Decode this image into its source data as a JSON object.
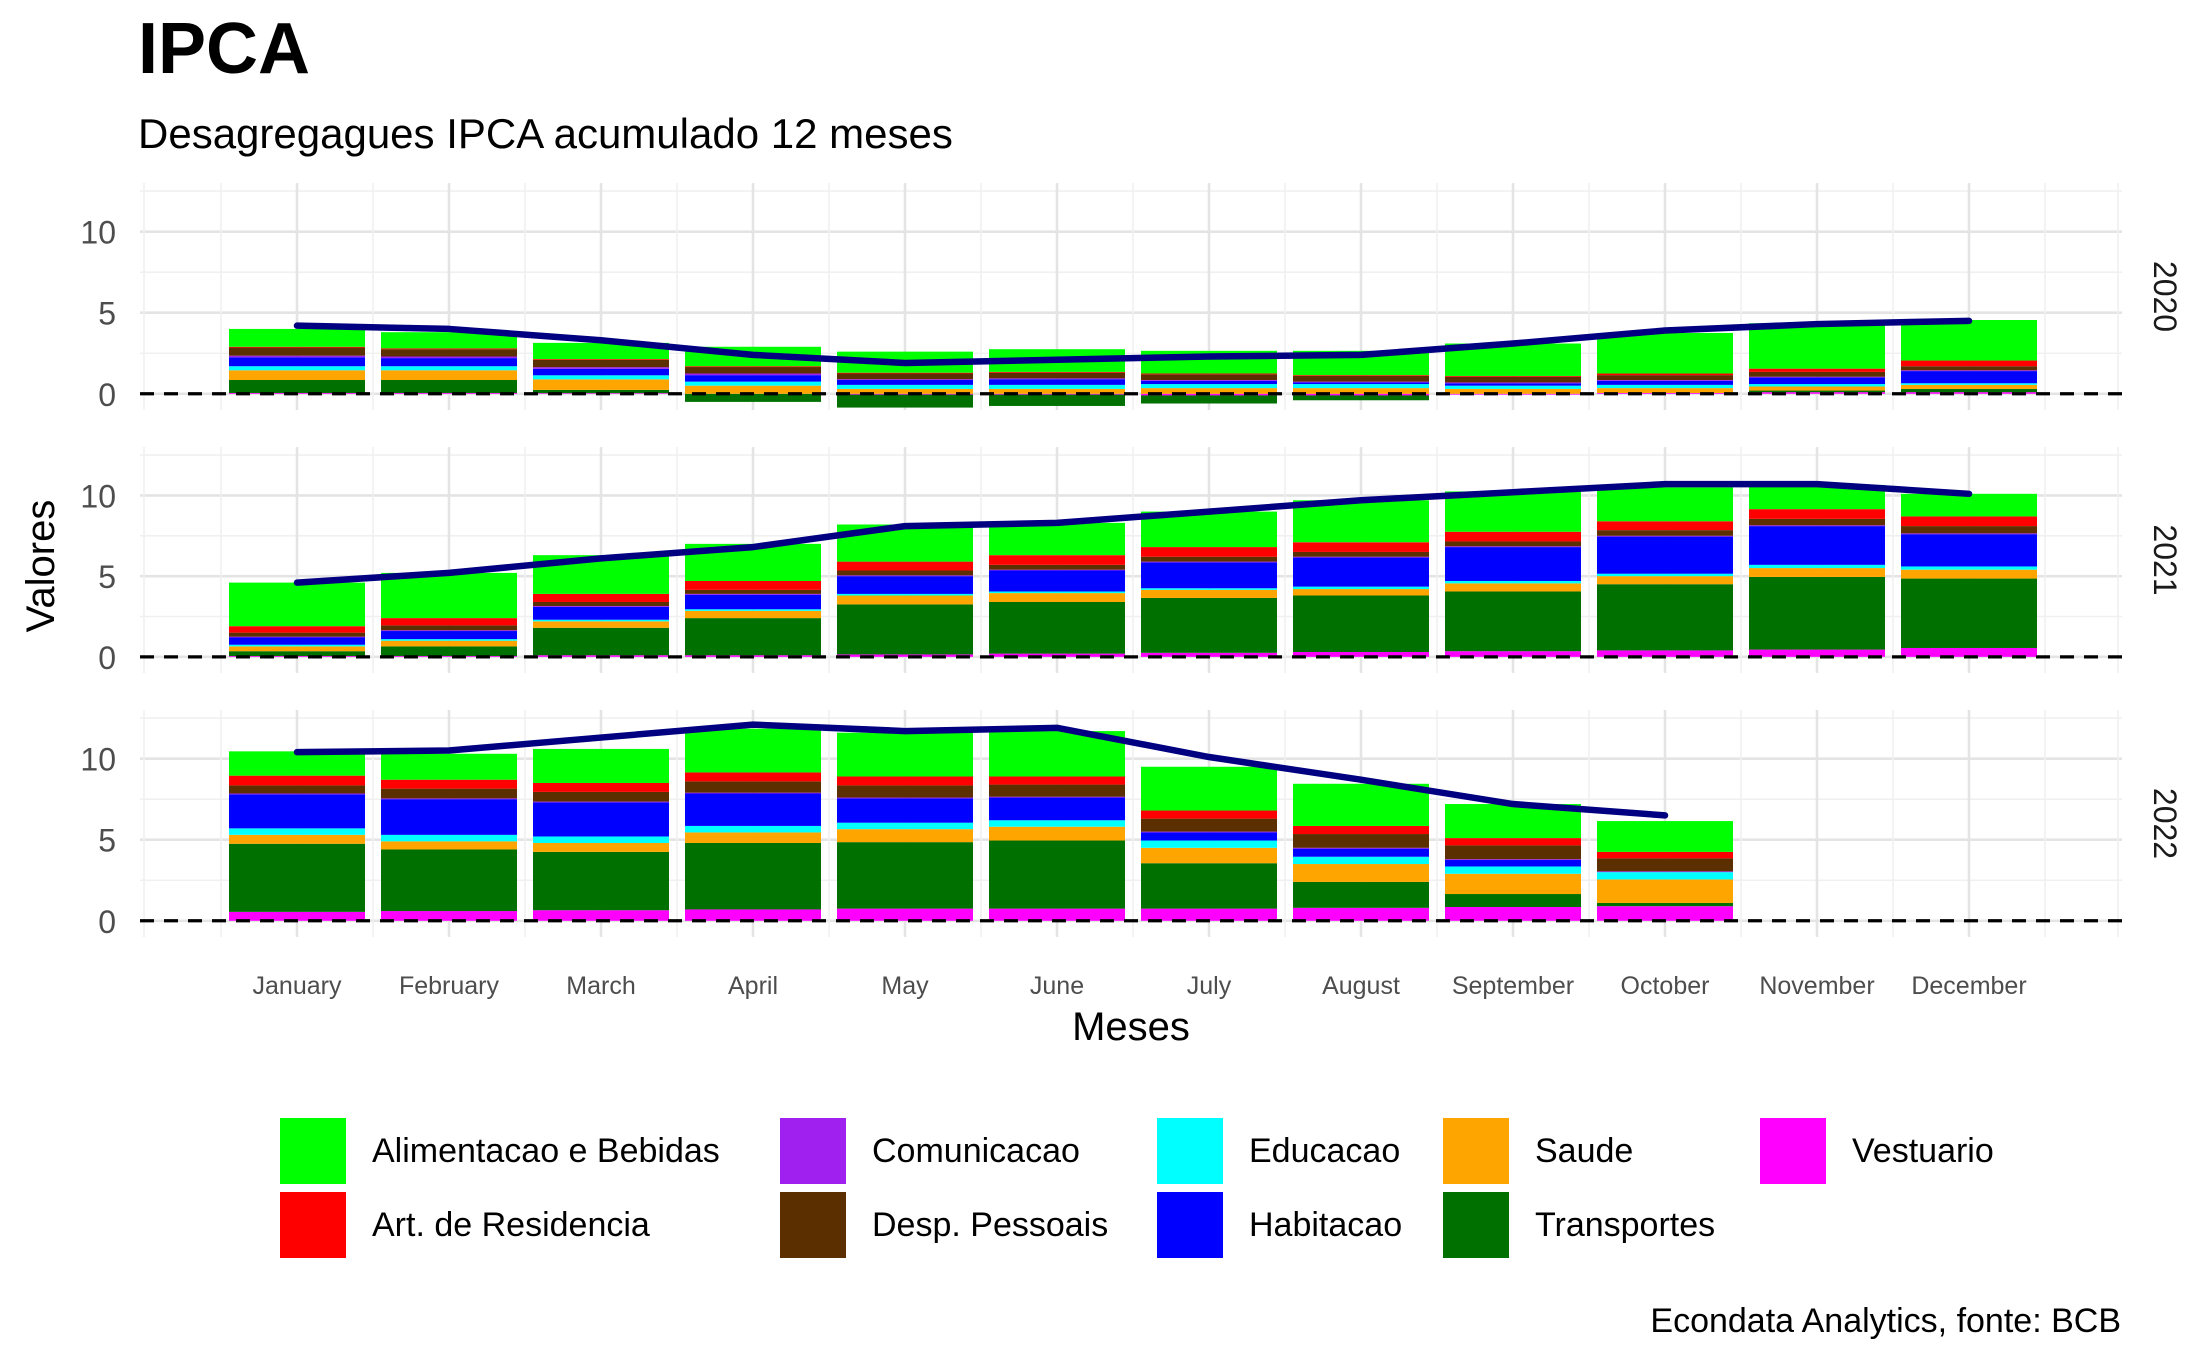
{
  "chart_data": {
    "type": "bar",
    "title": "IPCA",
    "subtitle": "Desagregagues IPCA acumulado 12 meses",
    "xlabel": "Meses",
    "ylabel": "Valores",
    "caption": "Econdata Analytics, fonte: BCB",
    "facet_labels": [
      "2020",
      "2021",
      "2022"
    ],
    "categories": [
      "January",
      "February",
      "March",
      "April",
      "May",
      "June",
      "July",
      "August",
      "September",
      "October",
      "November",
      "December"
    ],
    "ylim": [
      -1,
      13
    ],
    "yticks": [
      0,
      5,
      10
    ],
    "reference_line": 0,
    "line_color": "#000080",
    "series": [
      {
        "name": "Vestuario",
        "color": "#ff00ff",
        "values": {
          "2020": [
            0.05,
            0.05,
            0.04,
            0.0,
            -0.05,
            -0.05,
            -0.1,
            -0.1,
            -0.05,
            0.05,
            0.1,
            0.1
          ],
          "2021": [
            0.05,
            0.05,
            0.1,
            0.1,
            0.15,
            0.2,
            0.25,
            0.3,
            0.35,
            0.4,
            0.45,
            0.55
          ],
          "2022": [
            0.55,
            0.6,
            0.65,
            0.7,
            0.75,
            0.75,
            0.75,
            0.8,
            0.85,
            0.9,
            null,
            null
          ]
        }
      },
      {
        "name": "Transportes",
        "color": "#007000",
        "values": {
          "2020": [
            0.8,
            0.8,
            0.2,
            -0.5,
            -0.8,
            -0.7,
            -0.5,
            -0.3,
            0.0,
            0.0,
            0.1,
            0.2
          ],
          "2021": [
            0.3,
            0.6,
            1.7,
            2.3,
            3.1,
            3.2,
            3.4,
            3.5,
            3.7,
            4.1,
            4.5,
            4.3
          ],
          "2022": [
            4.2,
            3.8,
            3.6,
            4.1,
            4.1,
            4.2,
            2.8,
            1.6,
            0.8,
            0.2,
            null,
            null
          ]
        }
      },
      {
        "name": "Saude",
        "color": "#ffa500",
        "values": {
          "2020": [
            0.6,
            0.6,
            0.65,
            0.5,
            0.3,
            0.3,
            0.35,
            0.35,
            0.3,
            0.3,
            0.25,
            0.25
          ],
          "2021": [
            0.3,
            0.35,
            0.4,
            0.45,
            0.55,
            0.55,
            0.5,
            0.4,
            0.5,
            0.5,
            0.55,
            0.55
          ],
          "2022": [
            0.55,
            0.5,
            0.55,
            0.65,
            0.8,
            0.85,
            0.95,
            1.1,
            1.25,
            1.45,
            null,
            null
          ]
        }
      },
      {
        "name": "Educacao",
        "color": "#00ffff",
        "values": {
          "2020": [
            0.25,
            0.25,
            0.25,
            0.25,
            0.25,
            0.25,
            0.25,
            0.25,
            0.2,
            0.2,
            0.15,
            0.1
          ],
          "2021": [
            0.1,
            0.1,
            0.1,
            0.1,
            0.1,
            0.1,
            0.1,
            0.15,
            0.15,
            0.15,
            0.2,
            0.2
          ],
          "2022": [
            0.4,
            0.4,
            0.4,
            0.4,
            0.4,
            0.4,
            0.45,
            0.45,
            0.45,
            0.45,
            null,
            null
          ]
        }
      },
      {
        "name": "Habitacao",
        "color": "#0000ff",
        "values": {
          "2020": [
            0.55,
            0.5,
            0.4,
            0.4,
            0.3,
            0.35,
            0.2,
            0.1,
            0.15,
            0.25,
            0.4,
            0.75
          ],
          "2021": [
            0.45,
            0.5,
            0.8,
            0.9,
            1.1,
            1.3,
            1.6,
            1.8,
            2.1,
            2.3,
            2.4,
            2.0
          ],
          "2022": [
            2.1,
            2.2,
            2.1,
            2.0,
            1.5,
            1.4,
            0.5,
            0.5,
            0.4,
            0.0,
            null,
            null
          ]
        }
      },
      {
        "name": "Comunicacao",
        "color": "#a020f0",
        "values": {
          "2020": [
            0.1,
            0.1,
            0.1,
            0.1,
            0.05,
            0.05,
            0.05,
            0.05,
            0.05,
            0.05,
            0.05,
            0.05
          ],
          "2021": [
            0.05,
            0.05,
            0.05,
            0.05,
            0.05,
            0.05,
            0.05,
            0.05,
            0.05,
            0.05,
            0.05,
            0.05
          ],
          "2022": [
            0.05,
            0.05,
            0.05,
            0.05,
            0.05,
            0.05,
            0.05,
            0.05,
            0.05,
            0.05,
            null,
            null
          ]
        }
      },
      {
        "name": "Desp. Pessoais",
        "color": "#5c2f00",
        "values": {
          "2020": [
            0.5,
            0.45,
            0.45,
            0.4,
            0.35,
            0.35,
            0.35,
            0.35,
            0.35,
            0.3,
            0.3,
            0.25
          ],
          "2021": [
            0.25,
            0.3,
            0.25,
            0.25,
            0.3,
            0.3,
            0.3,
            0.3,
            0.3,
            0.35,
            0.4,
            0.45
          ],
          "2022": [
            0.5,
            0.6,
            0.6,
            0.7,
            0.75,
            0.75,
            0.8,
            0.85,
            0.85,
            0.8,
            null,
            null
          ]
        }
      },
      {
        "name": "Art. de Residencia",
        "color": "#ff0000",
        "values": {
          "2020": [
            0.05,
            0.05,
            0.05,
            0.05,
            0.05,
            0.05,
            0.05,
            0.05,
            0.05,
            0.1,
            0.2,
            0.35
          ],
          "2021": [
            0.4,
            0.45,
            0.5,
            0.55,
            0.55,
            0.6,
            0.6,
            0.6,
            0.6,
            0.55,
            0.6,
            0.6
          ],
          "2022": [
            0.6,
            0.55,
            0.55,
            0.55,
            0.55,
            0.5,
            0.5,
            0.5,
            0.45,
            0.4,
            null,
            null
          ]
        }
      },
      {
        "name": "Alimentacao e Bebidas",
        "color": "#00ff00",
        "values": {
          "2020": [
            1.1,
            1.0,
            1.0,
            1.2,
            1.3,
            1.4,
            1.4,
            1.5,
            2.0,
            2.5,
            2.8,
            2.5
          ],
          "2021": [
            2.7,
            2.8,
            2.4,
            2.3,
            2.3,
            2.0,
            2.2,
            2.6,
            2.5,
            2.1,
            1.5,
            1.4
          ],
          "2022": [
            1.5,
            1.6,
            2.1,
            2.7,
            2.7,
            2.8,
            2.7,
            2.6,
            2.1,
            1.9,
            null,
            null
          ]
        }
      }
    ],
    "ipca_line": {
      "2020": [
        4.2,
        4.0,
        3.3,
        2.4,
        1.9,
        2.1,
        2.3,
        2.4,
        3.1,
        3.9,
        4.3,
        4.5
      ],
      "2021": [
        4.6,
        5.2,
        6.1,
        6.8,
        8.1,
        8.3,
        9.0,
        9.7,
        10.2,
        10.7,
        10.7,
        10.1
      ],
      "2022": [
        10.4,
        10.5,
        11.3,
        12.1,
        11.7,
        11.9,
        10.1,
        8.7,
        7.2,
        6.5,
        null,
        null
      ]
    },
    "legend_order": [
      "Alimentacao e Bebidas",
      "Comunicacao",
      "Educacao",
      "Saude",
      "Vestuario",
      "Art. de Residencia",
      "Desp. Pessoais",
      "Habitacao",
      "Transportes"
    ]
  }
}
